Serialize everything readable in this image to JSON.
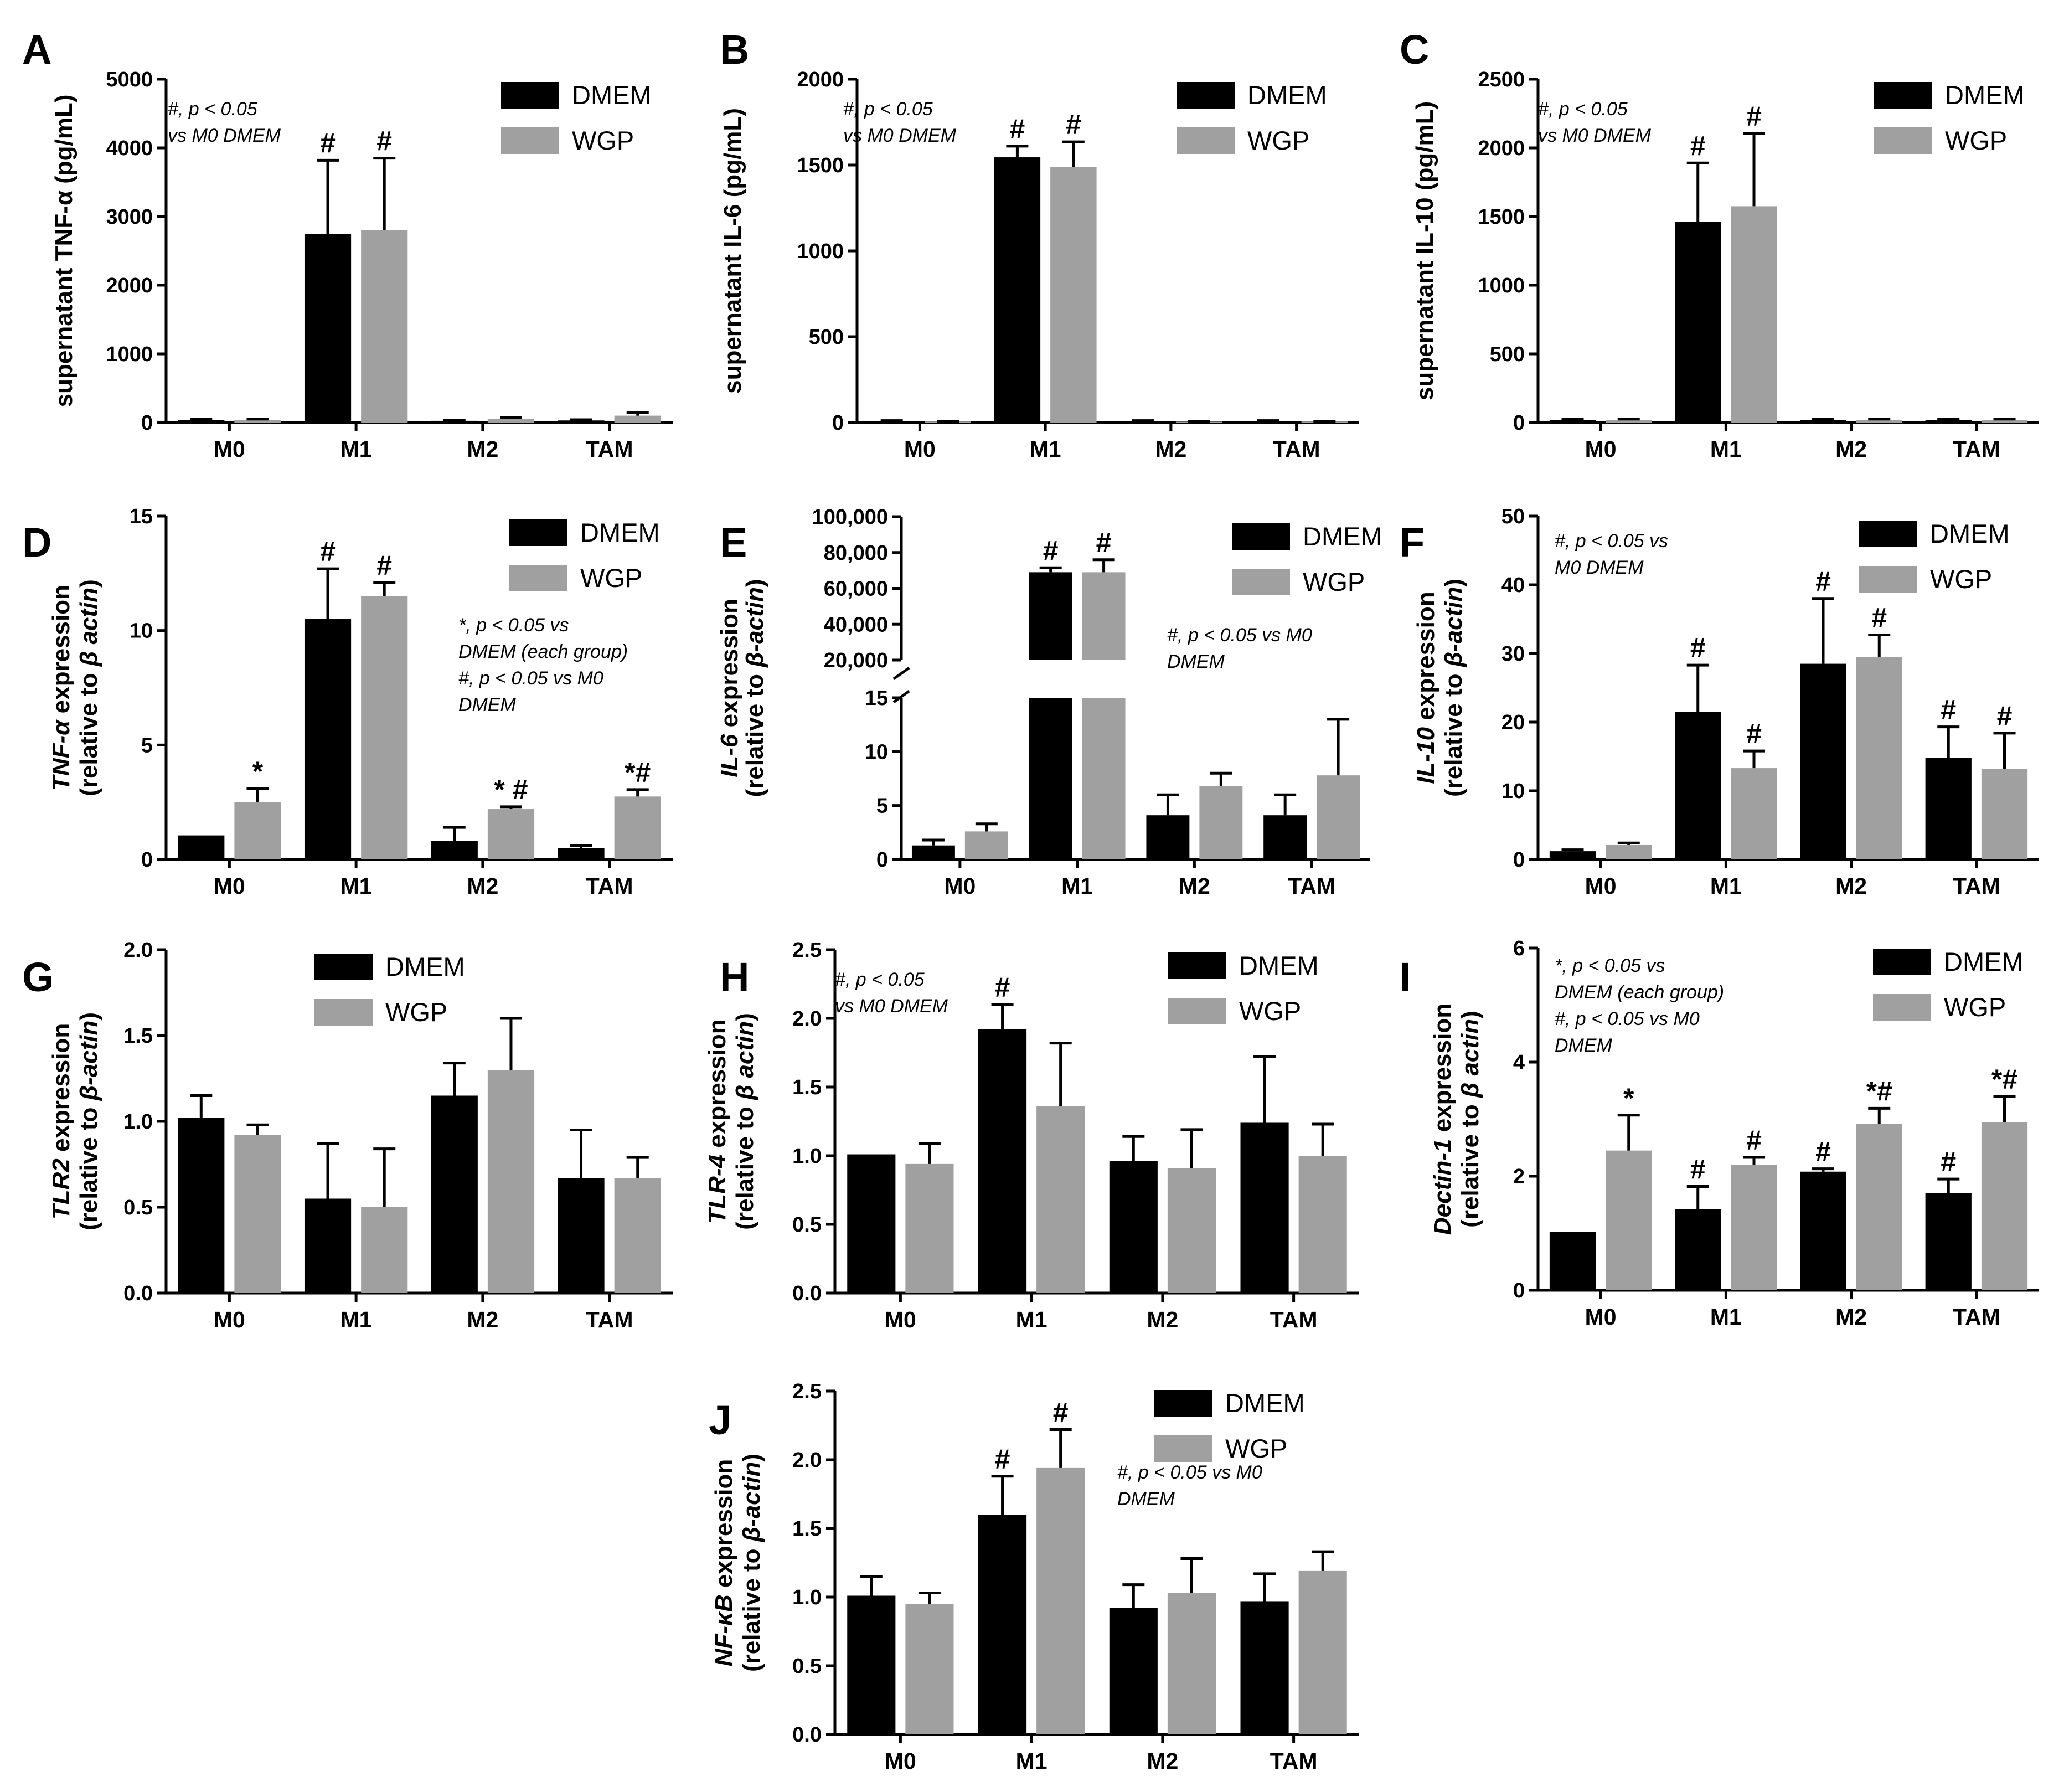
{
  "colors": {
    "DMEM": "#000000",
    "WGP": "#a0a0a0"
  },
  "legend_labels": [
    "DMEM",
    "WGP"
  ],
  "chart_data": [
    {
      "id": "A",
      "letter": "A",
      "type": "bar",
      "title": "",
      "xlabel": "",
      "ylabel": [
        {
          "t": "supernatant TNF-α (pg/mL)",
          "i": false
        }
      ],
      "ylabel2": null,
      "ylim": [
        0,
        5000
      ],
      "ytick_labels": [
        "0",
        "1000",
        "2000",
        "3000",
        "4000",
        "5000"
      ],
      "categories": [
        "M0",
        "M1",
        "M2",
        "TAM"
      ],
      "series": [
        {
          "name": "DMEM",
          "values": [
            40,
            2750,
            25,
            30
          ],
          "errors": [
            10,
            1070,
            8,
            10
          ]
        },
        {
          "name": "WGP",
          "values": [
            40,
            2800,
            50,
            100
          ],
          "errors": [
            10,
            1050,
            20,
            45
          ]
        }
      ],
      "annotations": {
        "DMEM": [
          "",
          "#",
          "",
          ""
        ],
        "WGP": [
          "",
          "#",
          "",
          ""
        ]
      },
      "note": [
        "#, p < 0.05",
        "vs M0 DMEM"
      ],
      "legend": "top-right"
    },
    {
      "id": "B",
      "letter": "B",
      "type": "bar",
      "title": "",
      "xlabel": "",
      "ylabel": [
        {
          "t": "supernatant IL-6 (pg/mL)",
          "i": false
        }
      ],
      "ylabel2": null,
      "ylim": [
        0,
        2000
      ],
      "ytick_labels": [
        "0",
        "500",
        "1000",
        "1500",
        "2000"
      ],
      "categories": [
        "M0",
        "M1",
        "M2",
        "TAM"
      ],
      "series": [
        {
          "name": "DMEM",
          "values": [
            8,
            1545,
            8,
            8
          ],
          "errors": [
            3,
            65,
            3,
            3
          ]
        },
        {
          "name": "WGP",
          "values": [
            6,
            1490,
            5,
            6
          ],
          "errors": [
            2,
            145,
            2,
            2
          ]
        }
      ],
      "annotations": {
        "DMEM": [
          "",
          "#",
          "",
          ""
        ],
        "WGP": [
          "",
          "#",
          "",
          ""
        ]
      },
      "note": [
        "#, p < 0.05",
        "vs M0 DMEM"
      ],
      "legend": "top-right"
    },
    {
      "id": "C",
      "letter": "C",
      "type": "bar",
      "title": "",
      "xlabel": "",
      "ylabel": [
        {
          "t": "supernatant IL-10 (pg/mL)",
          "i": false
        }
      ],
      "ylabel2": null,
      "ylim": [
        0,
        2500
      ],
      "ytick_labels": [
        "0",
        "500",
        "1000",
        "1500",
        "2000",
        "2500"
      ],
      "categories": [
        "M0",
        "M1",
        "M2",
        "TAM"
      ],
      "series": [
        {
          "name": "DMEM",
          "values": [
            20,
            1460,
            20,
            20
          ],
          "errors": [
            5,
            430,
            5,
            5
          ]
        },
        {
          "name": "WGP",
          "values": [
            20,
            1575,
            20,
            20
          ],
          "errors": [
            5,
            530,
            5,
            5
          ]
        }
      ],
      "annotations": {
        "DMEM": [
          "",
          "#",
          "",
          ""
        ],
        "WGP": [
          "",
          "#",
          "",
          ""
        ]
      },
      "note": [
        "#, p < 0.05",
        "vs M0 DMEM"
      ],
      "legend": "top-right"
    },
    {
      "id": "D",
      "letter": "D",
      "type": "bar",
      "title": "",
      "xlabel": "",
      "ylabel": [
        {
          "t": "TNF-α",
          "i": true
        },
        {
          "t": " expression",
          "i": false
        }
      ],
      "ylabel2": [
        {
          "t": "(relative to ",
          "i": false
        },
        {
          "t": "β actin",
          "i": true
        },
        {
          "t": ")",
          "i": false
        }
      ],
      "ylim": [
        0,
        15
      ],
      "ytick_labels": [
        "0",
        "5",
        "10",
        "15"
      ],
      "categories": [
        "M0",
        "M1",
        "M2",
        "TAM"
      ],
      "series": [
        {
          "name": "DMEM",
          "values": [
            1.05,
            10.5,
            0.8,
            0.5
          ],
          "errors": [
            0,
            2.2,
            0.6,
            0.1
          ]
        },
        {
          "name": "WGP",
          "values": [
            2.5,
            11.5,
            2.2,
            2.75
          ],
          "errors": [
            0.6,
            0.6,
            0.1,
            0.3
          ]
        }
      ],
      "annotations": {
        "DMEM": [
          "",
          "#",
          "",
          ""
        ],
        "WGP": [
          "*",
          "#",
          "* #",
          "*#"
        ]
      },
      "note": [
        "*, p < 0.05 vs",
        "DMEM (each group)",
        "#, p < 0.05 vs M0",
        "DMEM"
      ],
      "legend": "top-right"
    },
    {
      "id": "E",
      "letter": "E",
      "type": "bar",
      "broken_axis": true,
      "title": "",
      "xlabel": "",
      "ylabel": [
        {
          "t": "IL-6",
          "i": true
        },
        {
          "t": " expression",
          "i": false
        }
      ],
      "ylabel2": [
        {
          "t": "(relative to ",
          "i": false
        },
        {
          "t": "β-actin",
          "i": true
        },
        {
          "t": ")",
          "i": false
        }
      ],
      "ylim_lower": [
        0,
        15
      ],
      "ylim_upper": [
        20000,
        100000
      ],
      "ytick_labels_lower": [
        "0",
        "5",
        "10",
        "15"
      ],
      "ytick_labels_upper": [
        "20,000",
        "40,000",
        "60,000",
        "80,000",
        "100,000"
      ],
      "categories": [
        "M0",
        "M1",
        "M2",
        "TAM"
      ],
      "series": [
        {
          "name": "DMEM",
          "values": [
            1.3,
            69000,
            4.1,
            4.1
          ],
          "errors": [
            0.5,
            2500,
            1.9,
            1.9
          ]
        },
        {
          "name": "WGP",
          "values": [
            2.6,
            69000,
            6.8,
            7.8
          ],
          "errors": [
            0.7,
            7000,
            1.2,
            5.2
          ]
        }
      ],
      "annotations": {
        "DMEM": [
          "",
          "#",
          "",
          ""
        ],
        "WGP": [
          "",
          "#",
          "",
          ""
        ]
      },
      "note": [
        "#, p < 0.05 vs M0",
        "DMEM"
      ],
      "legend": "top-right"
    },
    {
      "id": "F",
      "letter": "F",
      "type": "bar",
      "title": "",
      "xlabel": "",
      "ylabel": [
        {
          "t": "IL-10",
          "i": true
        },
        {
          "t": " expression",
          "i": false
        }
      ],
      "ylabel2": [
        {
          "t": "(relative to ",
          "i": false
        },
        {
          "t": "β-actin",
          "i": true
        },
        {
          "t": ")",
          "i": false
        }
      ],
      "ylim": [
        0,
        50
      ],
      "ytick_labels": [
        "0",
        "10",
        "20",
        "30",
        "40",
        "50"
      ],
      "categories": [
        "M0",
        "M1",
        "M2",
        "TAM"
      ],
      "series": [
        {
          "name": "DMEM",
          "values": [
            1.2,
            21.5,
            28.5,
            14.8
          ],
          "errors": [
            0.2,
            6.8,
            9.5,
            4.5
          ]
        },
        {
          "name": "WGP",
          "values": [
            2.1,
            13.3,
            29.5,
            13.2
          ],
          "errors": [
            0.3,
            2.5,
            3.2,
            5.2
          ]
        }
      ],
      "annotations": {
        "DMEM": [
          "",
          "#",
          "#",
          "#"
        ],
        "WGP": [
          "",
          "#",
          "#",
          "#"
        ]
      },
      "note": [
        "#, p < 0.05 vs",
        "M0 DMEM"
      ],
      "legend": "top-right"
    },
    {
      "id": "G",
      "letter": "G",
      "type": "bar",
      "title": "",
      "xlabel": "",
      "ylabel": [
        {
          "t": "TLR2",
          "i": true
        },
        {
          "t": " expression",
          "i": false
        }
      ],
      "ylabel2": [
        {
          "t": "(relative to ",
          "i": false
        },
        {
          "t": "β-actin",
          "i": true
        },
        {
          "t": ")",
          "i": false
        }
      ],
      "ylim": [
        0,
        2
      ],
      "ytick_labels": [
        "0.0",
        "0.5",
        "1.0",
        "1.5",
        "2.0"
      ],
      "categories": [
        "M0",
        "M1",
        "M2",
        "TAM"
      ],
      "series": [
        {
          "name": "DMEM",
          "values": [
            1.02,
            0.55,
            1.15,
            0.67
          ],
          "errors": [
            0.13,
            0.32,
            0.19,
            0.28
          ]
        },
        {
          "name": "WGP",
          "values": [
            0.92,
            0.5,
            1.3,
            0.67
          ],
          "errors": [
            0.06,
            0.34,
            0.3,
            0.12
          ]
        }
      ],
      "annotations": {
        "DMEM": [
          "",
          "",
          "",
          ""
        ],
        "WGP": [
          "",
          "",
          "",
          ""
        ]
      },
      "note": [],
      "legend": "top-center"
    },
    {
      "id": "H",
      "letter": "H",
      "type": "bar",
      "title": "",
      "xlabel": "",
      "ylabel": [
        {
          "t": "TLR-4",
          "i": true
        },
        {
          "t": " expression",
          "i": false
        }
      ],
      "ylabel2": [
        {
          "t": "(relative to ",
          "i": false
        },
        {
          "t": "β actin",
          "i": true
        },
        {
          "t": ")",
          "i": false
        }
      ],
      "ylim": [
        0,
        2.5
      ],
      "ytick_labels": [
        "0.0",
        "0.5",
        "1.0",
        "1.5",
        "2.0",
        "2.5"
      ],
      "categories": [
        "M0",
        "M1",
        "M2",
        "TAM"
      ],
      "series": [
        {
          "name": "DMEM",
          "values": [
            1.01,
            1.92,
            0.96,
            1.24
          ],
          "errors": [
            0,
            0.18,
            0.18,
            0.48
          ]
        },
        {
          "name": "WGP",
          "values": [
            0.94,
            1.36,
            0.91,
            1.0
          ],
          "errors": [
            0.15,
            0.46,
            0.28,
            0.23
          ]
        }
      ],
      "annotations": {
        "DMEM": [
          "",
          "#",
          "",
          ""
        ],
        "WGP": [
          "",
          "",
          "",
          ""
        ]
      },
      "note": [
        "#, p < 0.05",
        "vs M0 DMEM"
      ],
      "legend": "top-right"
    },
    {
      "id": "I",
      "letter": "I",
      "type": "bar",
      "title": "",
      "xlabel": "",
      "ylabel": [
        {
          "t": "Dectin-1",
          "i": true
        },
        {
          "t": " expression",
          "i": false
        }
      ],
      "ylabel2": [
        {
          "t": "(relative to ",
          "i": false
        },
        {
          "t": "β actin",
          "i": true
        },
        {
          "t": ")",
          "i": false
        }
      ],
      "ylim": [
        0,
        6
      ],
      "ytick_labels": [
        "0",
        "2",
        "4",
        "6"
      ],
      "categories": [
        "M0",
        "M1",
        "M2",
        "TAM"
      ],
      "series": [
        {
          "name": "DMEM",
          "values": [
            1.02,
            1.42,
            2.08,
            1.7
          ],
          "errors": [
            0,
            0.4,
            0.05,
            0.25
          ]
        },
        {
          "name": "WGP",
          "values": [
            2.45,
            2.2,
            2.92,
            2.95
          ],
          "errors": [
            0.62,
            0.13,
            0.27,
            0.45
          ]
        }
      ],
      "annotations": {
        "DMEM": [
          "",
          "#",
          "#",
          "#"
        ],
        "WGP": [
          "*",
          "#",
          "*#",
          "*#"
        ]
      },
      "note": [
        "*, p < 0.05 vs",
        "DMEM (each group)",
        "#, p < 0.05 vs M0",
        "DMEM"
      ],
      "legend": "top-right"
    },
    {
      "id": "J",
      "letter": "J",
      "type": "bar",
      "title": "",
      "xlabel": "",
      "ylabel": [
        {
          "t": "NF-κB",
          "i": true
        },
        {
          "t": " expression",
          "i": false
        }
      ],
      "ylabel2": [
        {
          "t": "(relative to ",
          "i": false
        },
        {
          "t": "β-actin",
          "i": true
        },
        {
          "t": ")",
          "i": false
        }
      ],
      "ylim": [
        0,
        2.5
      ],
      "ytick_labels": [
        "0.0",
        "0.5",
        "1.0",
        "1.5",
        "2.0",
        "2.5"
      ],
      "categories": [
        "M0",
        "M1",
        "M2",
        "TAM"
      ],
      "series": [
        {
          "name": "DMEM",
          "values": [
            1.01,
            1.6,
            0.92,
            0.97
          ],
          "errors": [
            0.14,
            0.28,
            0.17,
            0.2
          ]
        },
        {
          "name": "WGP",
          "values": [
            0.95,
            1.94,
            1.03,
            1.19
          ],
          "errors": [
            0.08,
            0.28,
            0.25,
            0.14
          ]
        }
      ],
      "annotations": {
        "DMEM": [
          "",
          "#",
          "",
          ""
        ],
        "WGP": [
          "",
          "#",
          "",
          ""
        ]
      },
      "note": [
        "#, p < 0.05 vs M0",
        "DMEM"
      ],
      "legend": "top-right"
    }
  ]
}
